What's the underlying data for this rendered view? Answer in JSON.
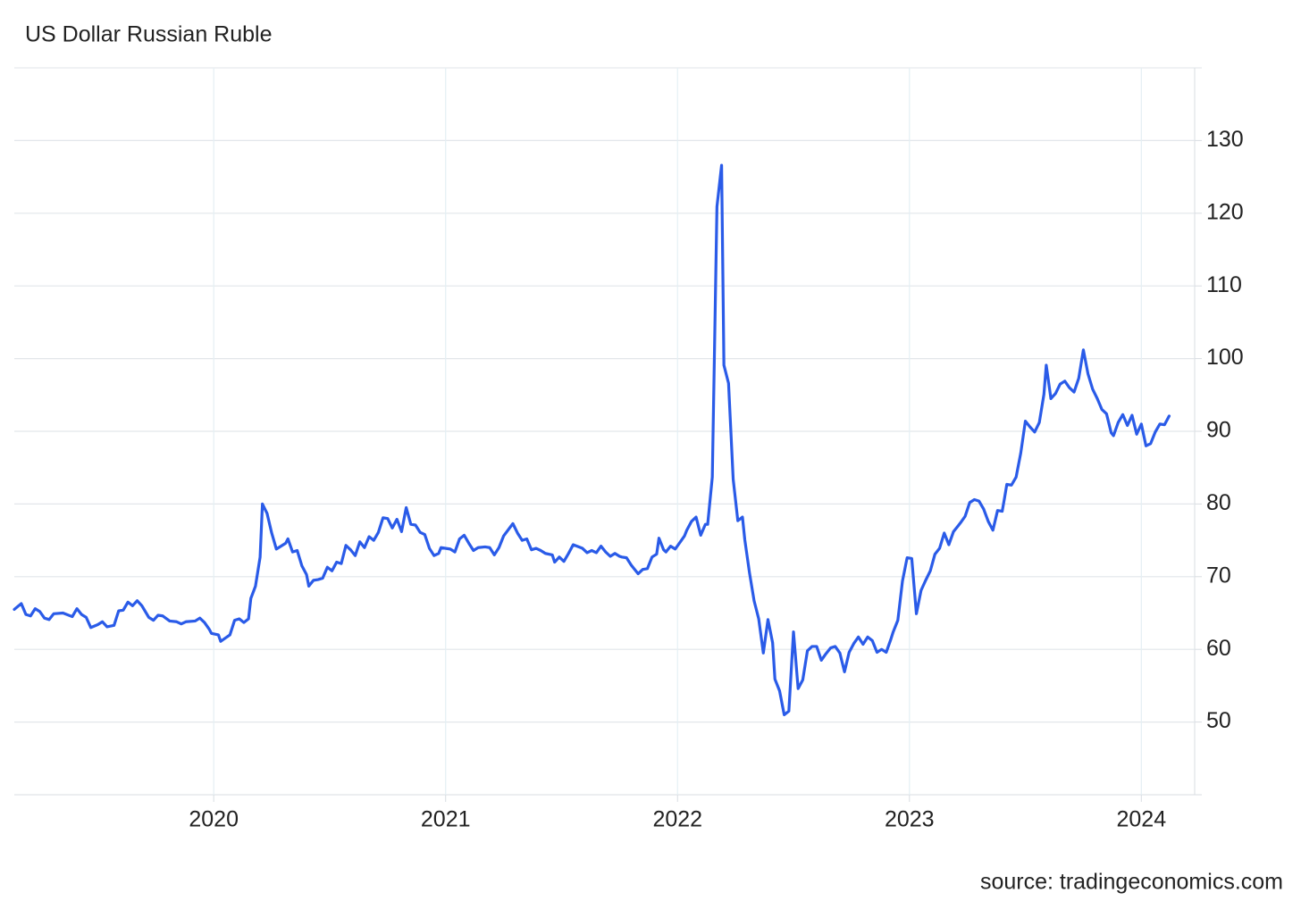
{
  "chart_data": {
    "type": "line",
    "title": "US Dollar Russian Ruble",
    "source": "source: tradingeconomics.com",
    "color": "#2a5be8",
    "grid": true,
    "xlim": [
      2019.14,
      2024.23
    ],
    "xticks": [
      2020,
      2021,
      2022,
      2023,
      2024
    ],
    "ylim": [
      40,
      140
    ],
    "yticks": [
      50,
      60,
      70,
      80,
      90,
      100,
      110,
      120,
      130
    ],
    "x": [
      2019.14,
      2019.17,
      2019.19,
      2019.21,
      2019.23,
      2019.25,
      2019.27,
      2019.29,
      2019.31,
      2019.35,
      2019.39,
      2019.41,
      2019.43,
      2019.45,
      2019.47,
      2019.5,
      2019.52,
      2019.54,
      2019.57,
      2019.59,
      2019.61,
      2019.63,
      2019.65,
      2019.67,
      2019.69,
      2019.72,
      2019.74,
      2019.76,
      2019.78,
      2019.81,
      2019.84,
      2019.86,
      2019.88,
      2019.92,
      2019.94,
      2019.96,
      2019.98,
      2019.99,
      2020.02,
      2020.03,
      2020.07,
      2020.09,
      2020.11,
      2020.13,
      2020.15,
      2020.16,
      2020.18,
      2020.2,
      2020.21,
      2020.23,
      2020.25,
      2020.27,
      2020.29,
      2020.31,
      2020.32,
      2020.34,
      2020.36,
      2020.38,
      2020.4,
      2020.41,
      2020.43,
      2020.45,
      2020.47,
      2020.49,
      2020.51,
      2020.53,
      2020.55,
      2020.57,
      2020.59,
      2020.61,
      2020.63,
      2020.65,
      2020.67,
      2020.69,
      2020.71,
      2020.73,
      2020.75,
      2020.77,
      2020.79,
      2020.81,
      2020.83,
      2020.85,
      2020.87,
      2020.89,
      2020.91,
      2020.93,
      2020.95,
      2020.97,
      2020.98,
      2021.02,
      2021.04,
      2021.06,
      2021.08,
      2021.1,
      2021.12,
      2021.14,
      2021.17,
      2021.19,
      2021.21,
      2021.23,
      2021.25,
      2021.29,
      2021.31,
      2021.33,
      2021.35,
      2021.37,
      2021.39,
      2021.41,
      2021.43,
      2021.46,
      2021.47,
      2021.49,
      2021.51,
      2021.53,
      2021.55,
      2021.59,
      2021.61,
      2021.63,
      2021.65,
      2021.67,
      2021.69,
      2021.71,
      2021.73,
      2021.75,
      2021.76,
      2021.78,
      2021.8,
      2021.83,
      2021.85,
      2021.87,
      2021.89,
      2021.91,
      2021.92,
      2021.94,
      2021.95,
      2021.97,
      2021.99,
      2022.01,
      2022.03,
      2022.04,
      2022.06,
      2022.08,
      2022.1,
      2022.12,
      2022.13,
      2022.15,
      2022.17,
      2022.19,
      2022.2,
      2022.22,
      2022.24,
      2022.26,
      2022.28,
      2022.29,
      2022.31,
      2022.33,
      2022.35,
      2022.37,
      2022.39,
      2022.41,
      2022.42,
      2022.44,
      2022.46,
      2022.48,
      2022.5,
      2022.52,
      2022.54,
      2022.56,
      2022.58,
      2022.6,
      2022.62,
      2022.64,
      2022.66,
      2022.68,
      2022.7,
      2022.72,
      2022.74,
      2022.76,
      2022.78,
      2022.8,
      2022.82,
      2022.84,
      2022.86,
      2022.88,
      2022.9,
      2022.92,
      2022.93,
      2022.95,
      2022.97,
      2022.99,
      2023.01,
      2023.03,
      2023.05,
      2023.07,
      2023.09,
      2023.11,
      2023.13,
      2023.15,
      2023.17,
      2023.19,
      2023.21,
      2023.22,
      2023.24,
      2023.26,
      2023.28,
      2023.3,
      2023.32,
      2023.34,
      2023.36,
      2023.38,
      2023.4,
      2023.41,
      2023.42,
      2023.44,
      2023.46,
      2023.48,
      2023.5,
      2023.52,
      2023.54,
      2023.56,
      2023.58,
      2023.59,
      2023.61,
      2023.63,
      2023.65,
      2023.67,
      2023.69,
      2023.71,
      2023.73,
      2023.75,
      2023.77,
      2023.79,
      2023.81,
      2023.83,
      2023.85,
      2023.87,
      2023.88,
      2023.9,
      2023.92,
      2023.94,
      2023.96,
      2023.98,
      2024.0,
      2024.02,
      2024.04,
      2024.06,
      2024.08,
      2024.1,
      2024.12
    ],
    "values": [
      65.5,
      66.3,
      64.8,
      64.6,
      65.6,
      65.2,
      64.3,
      64.1,
      64.9,
      65.0,
      64.5,
      65.6,
      64.8,
      64.4,
      63.0,
      63.4,
      63.8,
      63.1,
      63.3,
      65.3,
      65.4,
      66.5,
      66.0,
      66.7,
      66.0,
      64.4,
      64.0,
      64.7,
      64.6,
      63.9,
      63.8,
      63.5,
      63.8,
      63.9,
      64.3,
      63.7,
      62.8,
      62.2,
      62.0,
      61.1,
      62.0,
      64.0,
      64.2,
      63.7,
      64.2,
      67.0,
      68.7,
      72.7,
      80.0,
      78.7,
      76.0,
      73.8,
      74.2,
      74.6,
      75.2,
      73.4,
      73.6,
      71.5,
      70.3,
      68.7,
      69.5,
      69.6,
      69.8,
      71.3,
      70.8,
      72.0,
      71.8,
      74.3,
      73.7,
      72.9,
      74.8,
      74.0,
      75.5,
      75.0,
      76.1,
      78.1,
      78.0,
      76.7,
      77.9,
      76.2,
      79.5,
      77.2,
      77.1,
      76.1,
      75.8,
      73.9,
      72.9,
      73.2,
      74.0,
      73.8,
      73.4,
      75.2,
      75.7,
      74.6,
      73.6,
      74.0,
      74.1,
      74.0,
      73.0,
      74.0,
      75.6,
      77.3,
      76.0,
      75.0,
      75.2,
      73.7,
      73.9,
      73.6,
      73.2,
      73.0,
      72.0,
      72.7,
      72.1,
      73.2,
      74.4,
      73.9,
      73.3,
      73.6,
      73.3,
      74.2,
      73.4,
      72.8,
      73.2,
      72.8,
      72.7,
      72.6,
      71.6,
      70.4,
      71.0,
      71.1,
      72.7,
      73.1,
      75.3,
      73.7,
      73.4,
      74.2,
      73.8,
      74.7,
      75.6,
      76.4,
      77.6,
      78.2,
      75.7,
      77.2,
      77.2,
      83.7,
      120.9,
      126.6,
      99.1,
      96.6,
      83.4,
      77.7,
      78.2,
      75.1,
      70.6,
      66.7,
      64.2,
      59.5,
      64.1,
      60.9,
      55.9,
      54.3,
      51.0,
      51.5,
      62.4,
      54.6,
      55.8,
      59.8,
      60.4,
      60.4,
      58.5,
      59.4,
      60.2,
      60.4,
      59.5,
      56.9,
      59.6,
      60.8,
      61.7,
      60.7,
      61.7,
      61.2,
      59.6,
      60.0,
      59.6,
      61.4,
      62.4,
      64.0,
      69.4,
      72.6,
      72.5,
      64.9,
      68.1,
      69.5,
      70.8,
      73.1,
      73.9,
      76.0,
      74.4,
      76.2,
      77.0,
      77.4,
      78.3,
      80.2,
      80.6,
      80.4,
      79.3,
      77.6,
      76.4,
      79.1,
      79.0,
      80.8,
      82.7,
      82.6,
      83.7,
      87.0,
      91.4,
      90.6,
      89.9,
      91.2,
      95.1,
      99.1,
      94.5,
      95.2,
      96.5,
      96.9,
      96.0,
      95.4,
      97.3,
      101.2,
      97.9,
      95.8,
      94.5,
      93.0,
      92.4,
      89.8,
      89.4,
      91.2,
      92.3,
      90.8,
      92.2,
      89.6,
      91.0,
      88.0,
      88.3,
      89.9,
      91.0,
      90.9,
      92.1
    ]
  }
}
